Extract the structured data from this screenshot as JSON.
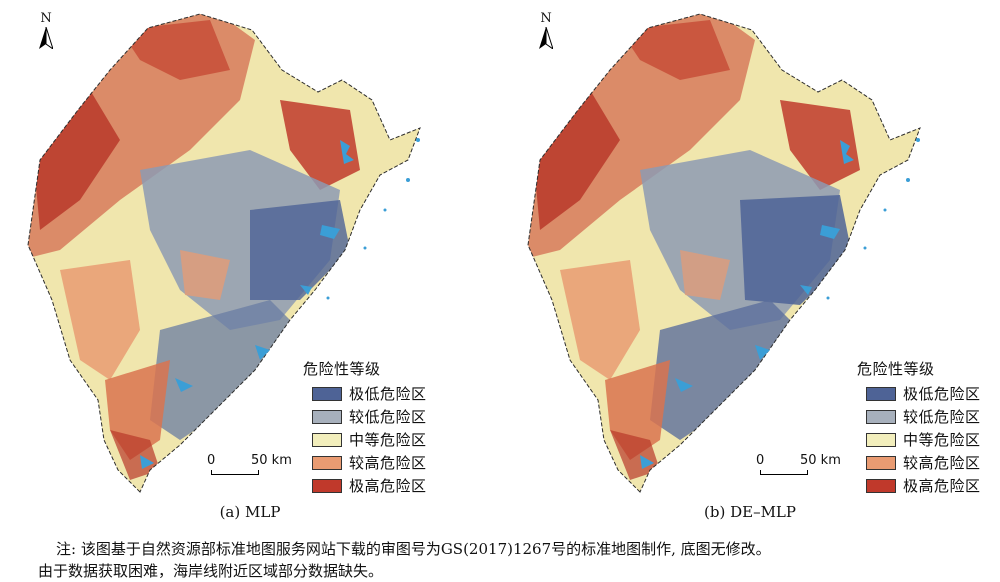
{
  "north_label": "N",
  "colors": {
    "very_low": "#4e6396",
    "low": "#a7b0bc",
    "medium": "#f2eebc",
    "high": "#e99b72",
    "very_high": "#c0392b",
    "water": "#3b9ed6"
  },
  "legend": {
    "title": "危险性等级",
    "items": [
      {
        "label": "极低危险区",
        "color": "#4e6396"
      },
      {
        "label": "较低危险区",
        "color": "#a7b0bc"
      },
      {
        "label": "中等危险区",
        "color": "#f2eebc"
      },
      {
        "label": "较高危险区",
        "color": "#e99b72"
      },
      {
        "label": "极高危险区",
        "color": "#c0392b"
      }
    ]
  },
  "scale": {
    "start": "0",
    "end": "50 km"
  },
  "panels": [
    {
      "caption": "(a) MLP"
    },
    {
      "caption": "(b) DE–MLP"
    }
  ],
  "note": {
    "line1": "注: 该图基于自然资源部标准地图服务网站下载的审图号为GS(2017)1267号的标准地图制作, 底图无修改。",
    "line2": "由于数据获取困难，海岸线附近区域部分数据缺失。"
  }
}
